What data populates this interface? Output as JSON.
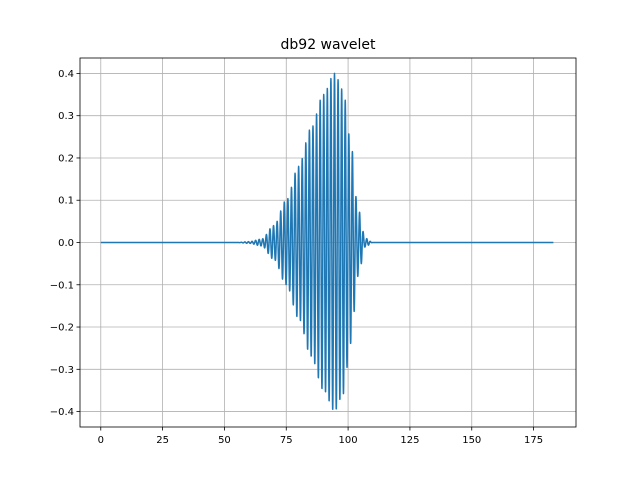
{
  "chart_data": {
    "type": "line",
    "title": "db92 wavelet",
    "xlabel": "",
    "ylabel": "",
    "xlim": [
      -8.4,
      192.15
    ],
    "ylim": [
      -0.4365,
      0.4365
    ],
    "xticks": [
      0,
      25,
      50,
      75,
      100,
      125,
      150,
      175
    ],
    "xtick_labels": [
      "0",
      "25",
      "50",
      "75",
      "100",
      "125",
      "150",
      "175"
    ],
    "yticks": [
      -0.4,
      -0.3,
      -0.2,
      -0.1,
      0.0,
      0.1,
      0.2,
      0.3,
      0.4
    ],
    "ytick_labels": [
      "−0.4",
      "−0.3",
      "−0.2",
      "−0.1",
      "0.0",
      "0.1",
      "0.2",
      "0.3",
      "0.4"
    ],
    "grid": true,
    "series": [
      {
        "color": "#1f77b4",
        "x_range": [
          0,
          183
        ],
        "support_range": [
          57,
          110
        ],
        "peak_x": 94.5,
        "peak_amplitude": 0.4,
        "approx_period": 1.45,
        "envelope_points": [
          {
            "x": 55,
            "amp": 0.0
          },
          {
            "x": 60,
            "amp": 0.002
          },
          {
            "x": 65,
            "amp": 0.008
          },
          {
            "x": 70,
            "amp": 0.04
          },
          {
            "x": 75,
            "amp": 0.1
          },
          {
            "x": 80,
            "amp": 0.18
          },
          {
            "x": 85,
            "amp": 0.27
          },
          {
            "x": 90,
            "amp": 0.35
          },
          {
            "x": 94.5,
            "amp": 0.4
          },
          {
            "x": 98,
            "amp": 0.36
          },
          {
            "x": 101,
            "amp": 0.24
          },
          {
            "x": 104,
            "amp": 0.08
          },
          {
            "x": 107,
            "amp": 0.01
          },
          {
            "x": 110,
            "amp": 0.0
          }
        ]
      }
    ]
  }
}
